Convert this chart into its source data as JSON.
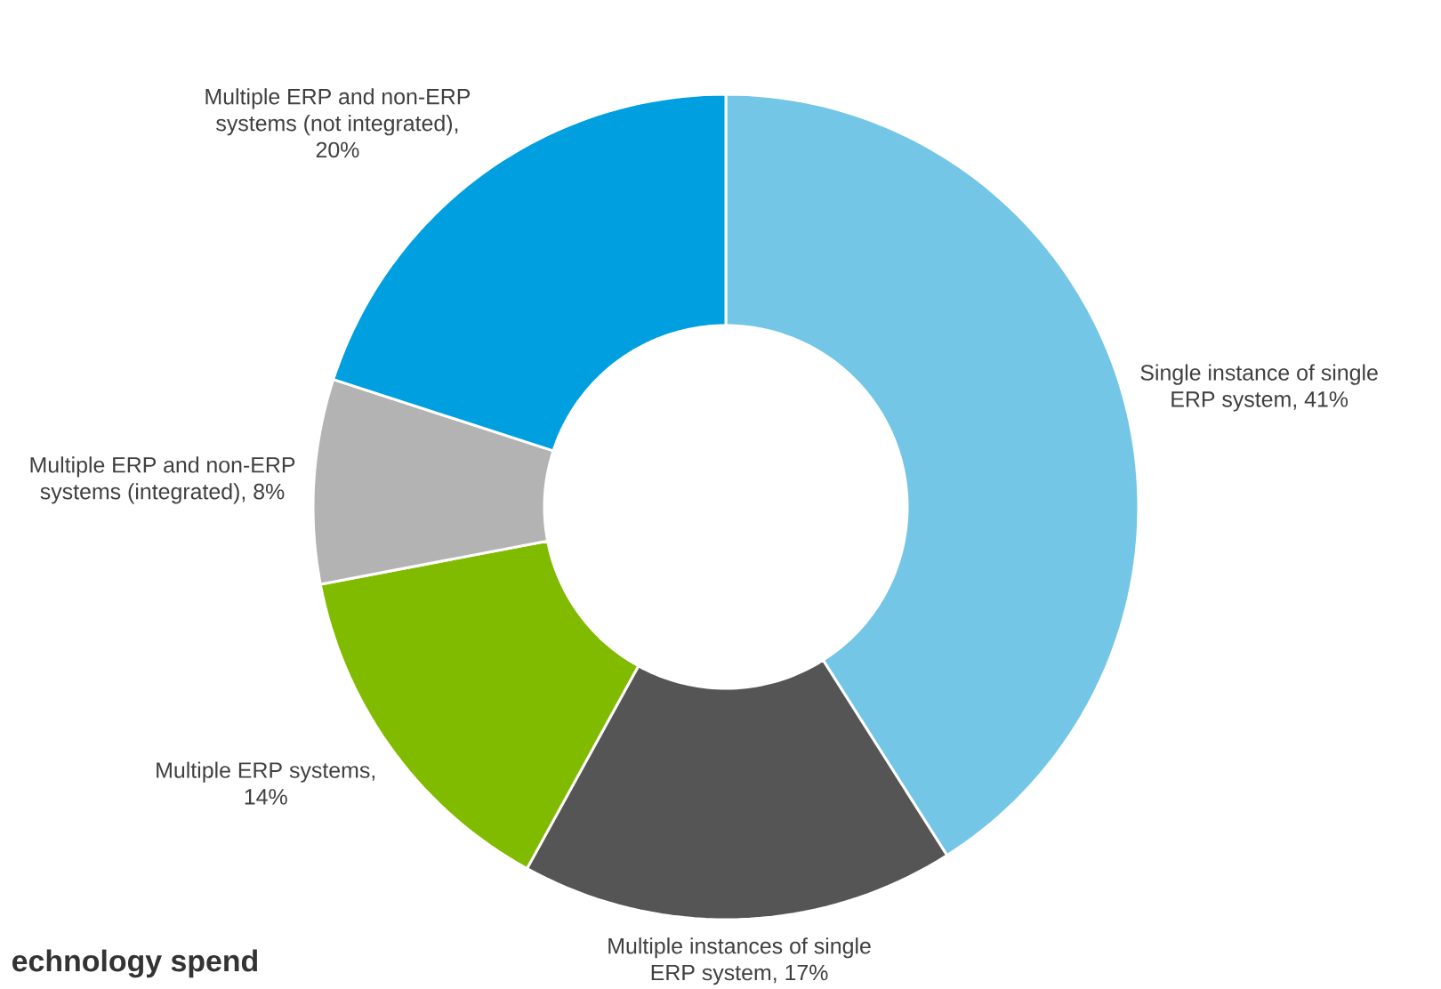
{
  "chart_data": {
    "type": "donut",
    "categories": [
      "Single instance of single ERP system, 41%",
      "Multiple instances of single ERP system, 17%",
      "Multiple ERP systems, 14%",
      "Multiple ERP and non-ERP systems (integrated), 8%",
      "Multiple ERP and non-ERP systems (not integrated), 20%"
    ],
    "values": [
      41,
      17,
      14,
      8,
      20
    ],
    "colors": [
      "#74c6e6",
      "#555555",
      "#80bb00",
      "#b3b3b3",
      "#009fdf"
    ],
    "annotations": [
      "echnology spend"
    ]
  }
}
